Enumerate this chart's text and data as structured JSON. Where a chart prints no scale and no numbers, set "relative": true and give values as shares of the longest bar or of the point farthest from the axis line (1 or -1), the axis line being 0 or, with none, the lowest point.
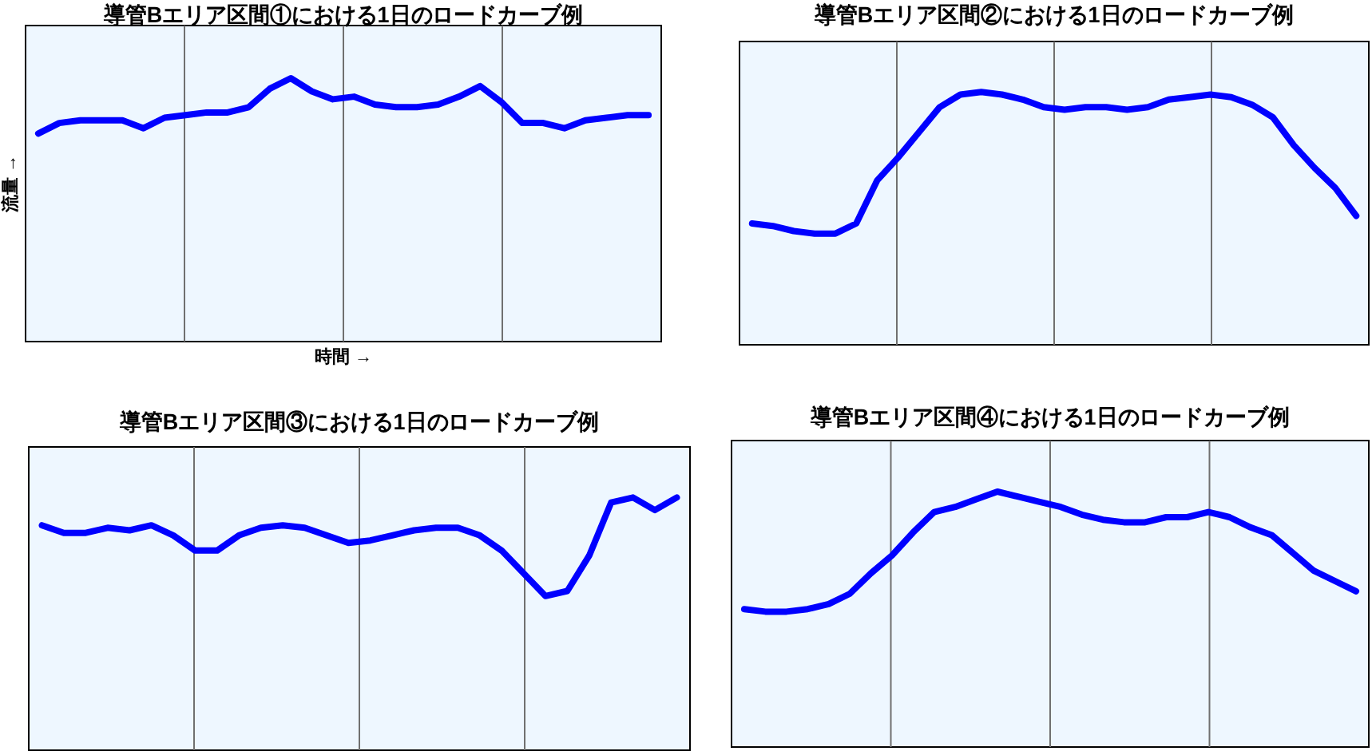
{
  "chart_data": [
    {
      "type": "line",
      "title": "導管Bエリア区間①における1日のロードカーブ例",
      "xlabel": "時間 →",
      "ylabel": "流量 →",
      "relative": true,
      "grid": "x",
      "line_style": "solid",
      "categories": [
        null,
        null,
        null,
        null,
        null,
        null,
        null,
        null,
        null,
        null,
        null,
        null,
        null,
        null,
        null,
        null,
        null,
        null,
        null,
        null,
        null,
        null,
        null,
        null,
        null,
        null,
        null,
        null,
        null,
        null
      ],
      "series": [
        {
          "color": "#0000ff",
          "values": [
            0.79,
            0.83,
            0.84,
            0.84,
            0.84,
            0.81,
            0.85,
            0.86,
            0.87,
            0.87,
            0.89,
            0.96,
            1,
            0.95,
            0.92,
            0.93,
            0.9,
            0.89,
            0.89,
            0.9,
            0.93,
            0.97,
            0.91,
            0.83,
            0.83,
            0.81,
            0.84,
            0.85,
            0.86,
            0.86
          ]
        }
      ]
    },
    {
      "type": "line",
      "title": "導管Bエリア区間②における1日のロードカーブ例",
      "relative": true,
      "grid": "x",
      "line_style": "solid",
      "categories": [
        null,
        null,
        null,
        null,
        null,
        null,
        null,
        null,
        null,
        null,
        null,
        null,
        null,
        null,
        null,
        null,
        null,
        null,
        null,
        null,
        null,
        null,
        null,
        null,
        null,
        null,
        null,
        null,
        null,
        null
      ],
      "series": [
        {
          "color": "#0000ff",
          "values": [
            0.48,
            0.47,
            0.45,
            0.44,
            0.44,
            0.48,
            0.65,
            0.74,
            0.84,
            0.94,
            0.99,
            1,
            0.99,
            0.97,
            0.94,
            0.93,
            0.94,
            0.94,
            0.93,
            0.94,
            0.97,
            0.98,
            0.99,
            0.98,
            0.95,
            0.9,
            0.79,
            0.7,
            0.62,
            0.51
          ]
        }
      ]
    },
    {
      "type": "line",
      "title": "導管Bエリア区間③における1日のロードカーブ例",
      "relative": true,
      "grid": "x",
      "line_style": "solid",
      "categories": [
        null,
        null,
        null,
        null,
        null,
        null,
        null,
        null,
        null,
        null,
        null,
        null,
        null,
        null,
        null,
        null,
        null,
        null,
        null,
        null,
        null,
        null,
        null,
        null,
        null,
        null,
        null,
        null,
        null,
        null
      ],
      "series": [
        {
          "color": "#0000ff",
          "values": [
            0.89,
            0.86,
            0.86,
            0.88,
            0.87,
            0.89,
            0.85,
            0.79,
            0.79,
            0.85,
            0.88,
            0.89,
            0.88,
            0.85,
            0.82,
            0.83,
            0.85,
            0.87,
            0.88,
            0.88,
            0.85,
            0.79,
            0.7,
            0.61,
            0.63,
            0.77,
            0.98,
            1,
            0.95,
            1
          ]
        }
      ]
    },
    {
      "type": "line",
      "title": "導管Bエリア区間④における1日のロードカーブ例",
      "relative": true,
      "grid": "x",
      "line_style": "solid",
      "categories": [
        null,
        null,
        null,
        null,
        null,
        null,
        null,
        null,
        null,
        null,
        null,
        null,
        null,
        null,
        null,
        null,
        null,
        null,
        null,
        null,
        null,
        null,
        null,
        null,
        null,
        null,
        null,
        null,
        null,
        null
      ],
      "series": [
        {
          "color": "#0000ff",
          "values": [
            0.54,
            0.53,
            0.53,
            0.54,
            0.56,
            0.6,
            0.68,
            0.75,
            0.84,
            0.92,
            0.94,
            0.97,
            1,
            0.98,
            0.96,
            0.94,
            0.91,
            0.89,
            0.88,
            0.88,
            0.9,
            0.9,
            0.92,
            0.9,
            0.86,
            0.83,
            0.76,
            0.69,
            0.65,
            0.61
          ]
        }
      ]
    }
  ]
}
